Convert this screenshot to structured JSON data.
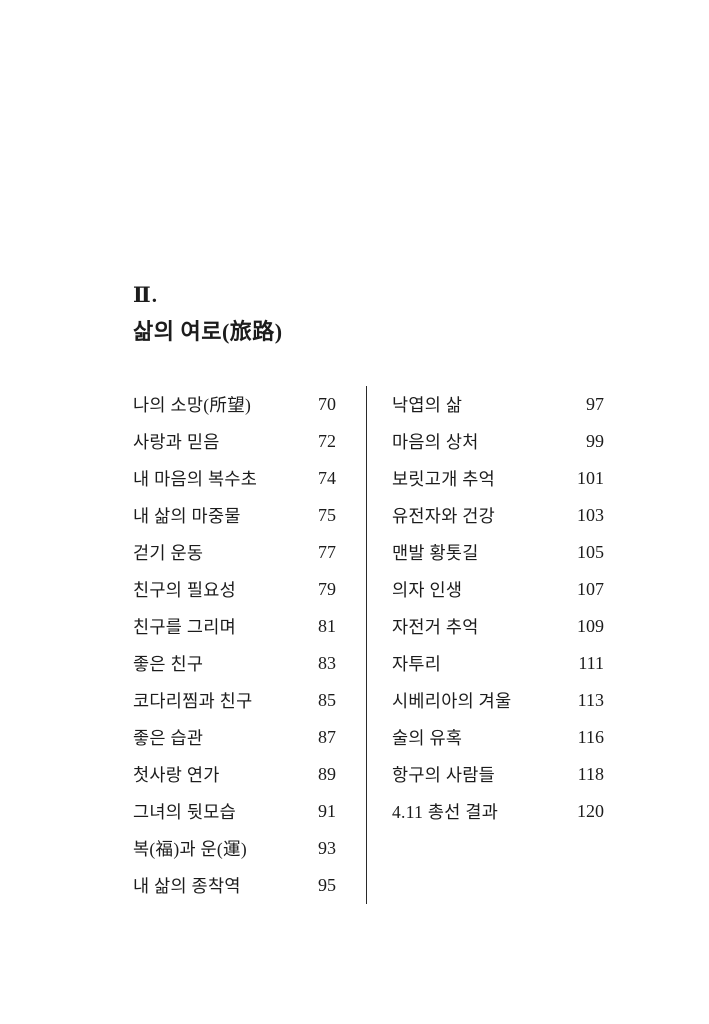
{
  "section": {
    "number": "Ⅱ.",
    "title": "삶의 여로(旅路)"
  },
  "toc": {
    "left_column": [
      {
        "title": "나의 소망(所望)",
        "page": "70"
      },
      {
        "title": "사랑과 믿음",
        "page": "72"
      },
      {
        "title": "내 마음의 복수초",
        "page": "74"
      },
      {
        "title": "내 삶의 마중물",
        "page": "75"
      },
      {
        "title": "걷기 운동",
        "page": "77"
      },
      {
        "title": "친구의 필요성",
        "page": "79"
      },
      {
        "title": "친구를 그리며",
        "page": "81"
      },
      {
        "title": "좋은 친구",
        "page": "83"
      },
      {
        "title": "코다리찜과 친구",
        "page": "85"
      },
      {
        "title": "좋은 습관",
        "page": "87"
      },
      {
        "title": "첫사랑 연가",
        "page": "89"
      },
      {
        "title": "그녀의 뒷모습",
        "page": "91"
      },
      {
        "title": "복(福)과 운(運)",
        "page": "93"
      },
      {
        "title": "내 삶의 종착역",
        "page": "95"
      }
    ],
    "right_column": [
      {
        "title": "낙엽의 삶",
        "page": "97"
      },
      {
        "title": "마음의 상처",
        "page": "99"
      },
      {
        "title": "보릿고개 추억",
        "page": "101"
      },
      {
        "title": "유전자와 건강",
        "page": "103"
      },
      {
        "title": "맨발 황톳길",
        "page": "105"
      },
      {
        "title": "의자 인생",
        "page": "107"
      },
      {
        "title": "자전거 추억",
        "page": "109"
      },
      {
        "title": "자투리",
        "page": "111"
      },
      {
        "title": "시베리아의 겨울",
        "page": "113"
      },
      {
        "title": "술의 유혹",
        "page": "116"
      },
      {
        "title": "항구의 사람들",
        "page": "118"
      },
      {
        "title": "4.11 총선 결과",
        "page": "120"
      }
    ]
  }
}
